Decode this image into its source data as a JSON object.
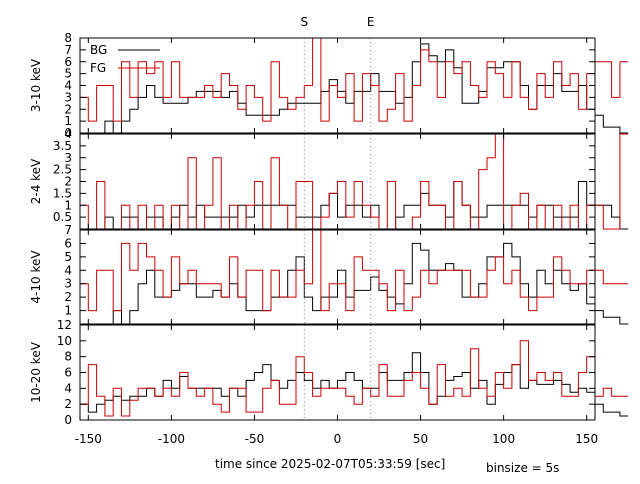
{
  "xlabel": "time since 2025-02-07T05:33:59 [sec]",
  "binsize": "binsize = 5s",
  "markers": [
    {
      "label": "S",
      "x": -20
    },
    {
      "label": "E",
      "x": 20
    }
  ],
  "legend": [
    {
      "label": "BG",
      "color": "#000000"
    },
    {
      "label": "FG",
      "color": "#cc0000"
    }
  ],
  "colors": {
    "bg": "#000000",
    "fg": "#cc0000",
    "marker": "#808080"
  },
  "xlim": [
    -155,
    155
  ],
  "xticks": [
    -150,
    -100,
    -50,
    0,
    50,
    100,
    150
  ],
  "chart_data": [
    {
      "type": "line",
      "ylabel": "3-10 keV",
      "ylim": [
        0,
        8
      ],
      "yticks": [
        0,
        1,
        2,
        3,
        4,
        5,
        6,
        7,
        8
      ],
      "x_start": -155,
      "bin": 5,
      "series": [
        {
          "name": "BG",
          "values": [
            0,
            0,
            0,
            1,
            0,
            1,
            2,
            3,
            4,
            3,
            2.5,
            2.5,
            2.5,
            3,
            3.5,
            3.5,
            3.5,
            3,
            3.5,
            2.5,
            1.5,
            1.5,
            1.5,
            1.5,
            2,
            2.5,
            2.5,
            2.5,
            2.5,
            3.5,
            4.5,
            3.5,
            2.5,
            3.5,
            3.5,
            5,
            3.5,
            3.5,
            2.5,
            3,
            6,
            7.5,
            6.5,
            6,
            7,
            5.5,
            2.5,
            2.5,
            3.5,
            5.5,
            5.5,
            6,
            6,
            4,
            2,
            4,
            4,
            5,
            3.5,
            3.5,
            4,
            2,
            1.5,
            0.5,
            0.5,
            0
          ]
        },
        {
          "name": "FG",
          "values": [
            3,
            1,
            4,
            4,
            1,
            6,
            3,
            6,
            5,
            6,
            3,
            6,
            3,
            3,
            3,
            4,
            3,
            5,
            4,
            2,
            4,
            3,
            1,
            6,
            3,
            2,
            3,
            4,
            8,
            1,
            4,
            3,
            5,
            1,
            5,
            4,
            1,
            2,
            5,
            1,
            4,
            7,
            6,
            3,
            6,
            5,
            6,
            4,
            3,
            6,
            5,
            3,
            6,
            3,
            2,
            5,
            3,
            6,
            4,
            5,
            2,
            5,
            6,
            6,
            3,
            6
          ]
        }
      ]
    },
    {
      "type": "line",
      "ylabel": "2-4 keV",
      "ylim": [
        0,
        4
      ],
      "yticks": [
        0.5,
        1,
        1.5,
        2,
        2.5,
        3,
        3.5,
        4
      ],
      "x_start": -155,
      "bin": 5,
      "series": [
        {
          "name": "BG",
          "values": [
            0,
            0,
            0,
            0.5,
            0,
            0.5,
            0.5,
            0,
            0.5,
            0.5,
            0,
            0.5,
            1,
            0.5,
            1,
            0.5,
            0.5,
            0.5,
            0.5,
            1,
            0.5,
            1,
            1,
            1,
            1,
            1,
            0.5,
            0.5,
            0.5,
            1,
            1.5,
            0.5,
            1,
            1,
            0.5,
            1,
            0,
            0,
            0.5,
            1,
            1,
            1.5,
            1,
            1,
            0.5,
            2,
            1,
            0.5,
            0.5,
            1,
            1,
            1,
            1,
            1,
            0.5,
            1,
            1,
            0.5,
            0.5,
            0.5,
            2,
            1,
            1,
            1,
            0.5,
            0
          ]
        },
        {
          "name": "FG",
          "values": [
            1,
            0,
            2,
            0,
            0,
            1,
            0,
            1,
            0,
            1,
            0,
            1,
            0,
            3,
            0,
            1,
            3,
            0,
            1,
            0,
            1,
            2,
            0,
            3,
            1,
            0,
            2,
            2,
            0,
            0.5,
            1.5,
            2,
            0.5,
            2,
            1,
            0.5,
            0,
            2,
            0,
            0,
            0.5,
            2,
            1,
            1,
            0,
            2,
            1,
            0,
            2.5,
            3,
            4,
            0,
            1,
            1.5,
            0,
            1,
            0,
            1,
            0,
            1,
            0,
            1,
            1,
            0,
            0,
            4
          ]
        }
      ]
    },
    {
      "type": "line",
      "ylabel": "4-10 keV",
      "ylim": [
        0,
        7
      ],
      "yticks": [
        1,
        2,
        3,
        4,
        5,
        6,
        7
      ],
      "x_start": -155,
      "bin": 5,
      "series": [
        {
          "name": "BG",
          "values": [
            0,
            0,
            0,
            0,
            1,
            0,
            1,
            3,
            4,
            2,
            2,
            2.5,
            3,
            3,
            2,
            2,
            2.5,
            2,
            3,
            2,
            1,
            1,
            1,
            2,
            2,
            4,
            5,
            2,
            1,
            2,
            2,
            4,
            2,
            2.5,
            2.5,
            3.5,
            2.5,
            2,
            1.5,
            3,
            6,
            5.5,
            4,
            4,
            4.5,
            4,
            2,
            2,
            3,
            5,
            5,
            6,
            5,
            3,
            2,
            4,
            3,
            4,
            3,
            2.5,
            3,
            1.5,
            1,
            0.5,
            0.5,
            0
          ]
        },
        {
          "name": "FG",
          "values": [
            3,
            1,
            4,
            4,
            1,
            6,
            4,
            6,
            5,
            4,
            2,
            5,
            3,
            4,
            3,
            3,
            3,
            2,
            5,
            2,
            4,
            4,
            1,
            4,
            2,
            2,
            4,
            3,
            7,
            1,
            3,
            3,
            1,
            5,
            4,
            4,
            3,
            1,
            4,
            1,
            2,
            4,
            3,
            4,
            4,
            4,
            4,
            2,
            2,
            4,
            5,
            3,
            4,
            2,
            1,
            2,
            2,
            5,
            4,
            3,
            3,
            4,
            4,
            3,
            3,
            3
          ]
        }
      ]
    },
    {
      "type": "line",
      "ylabel": "10-20 keV",
      "ylim": [
        0,
        12
      ],
      "yticks": [
        0,
        2,
        4,
        6,
        8,
        10,
        12
      ],
      "x_start": -155,
      "bin": 5,
      "series": [
        {
          "name": "BG",
          "values": [
            2,
            1,
            2,
            2.5,
            3,
            2.5,
            3,
            3,
            4,
            3,
            5,
            4,
            5.5,
            4,
            4,
            4,
            4,
            3,
            4,
            3,
            5,
            6,
            7,
            5,
            4,
            5,
            6,
            5,
            4,
            5,
            4,
            5,
            6,
            5,
            4,
            4,
            6,
            5,
            5,
            6,
            8.5,
            6,
            2,
            3,
            5,
            5.5,
            6,
            4,
            5,
            2,
            4.5,
            6,
            7,
            4,
            5,
            4.5,
            4.5,
            5,
            4.5,
            3.5,
            4,
            3.5,
            2,
            1,
            1,
            0.5
          ]
        },
        {
          "name": "FG",
          "values": [
            2,
            7,
            3,
            0.5,
            4,
            0.5,
            2.5,
            4,
            4,
            3,
            4,
            3,
            6,
            4,
            3,
            4,
            2,
            1,
            4,
            4,
            1,
            1,
            4,
            5,
            2,
            2,
            8,
            6,
            3,
            4,
            4,
            4,
            3,
            2,
            4,
            3,
            7,
            3,
            3,
            5,
            6,
            4,
            2,
            7,
            3,
            4,
            3,
            9,
            4,
            3,
            6,
            4,
            7,
            10,
            5,
            6,
            5,
            6,
            3,
            3,
            6,
            8,
            3,
            4,
            3,
            3
          ]
        }
      ]
    }
  ]
}
